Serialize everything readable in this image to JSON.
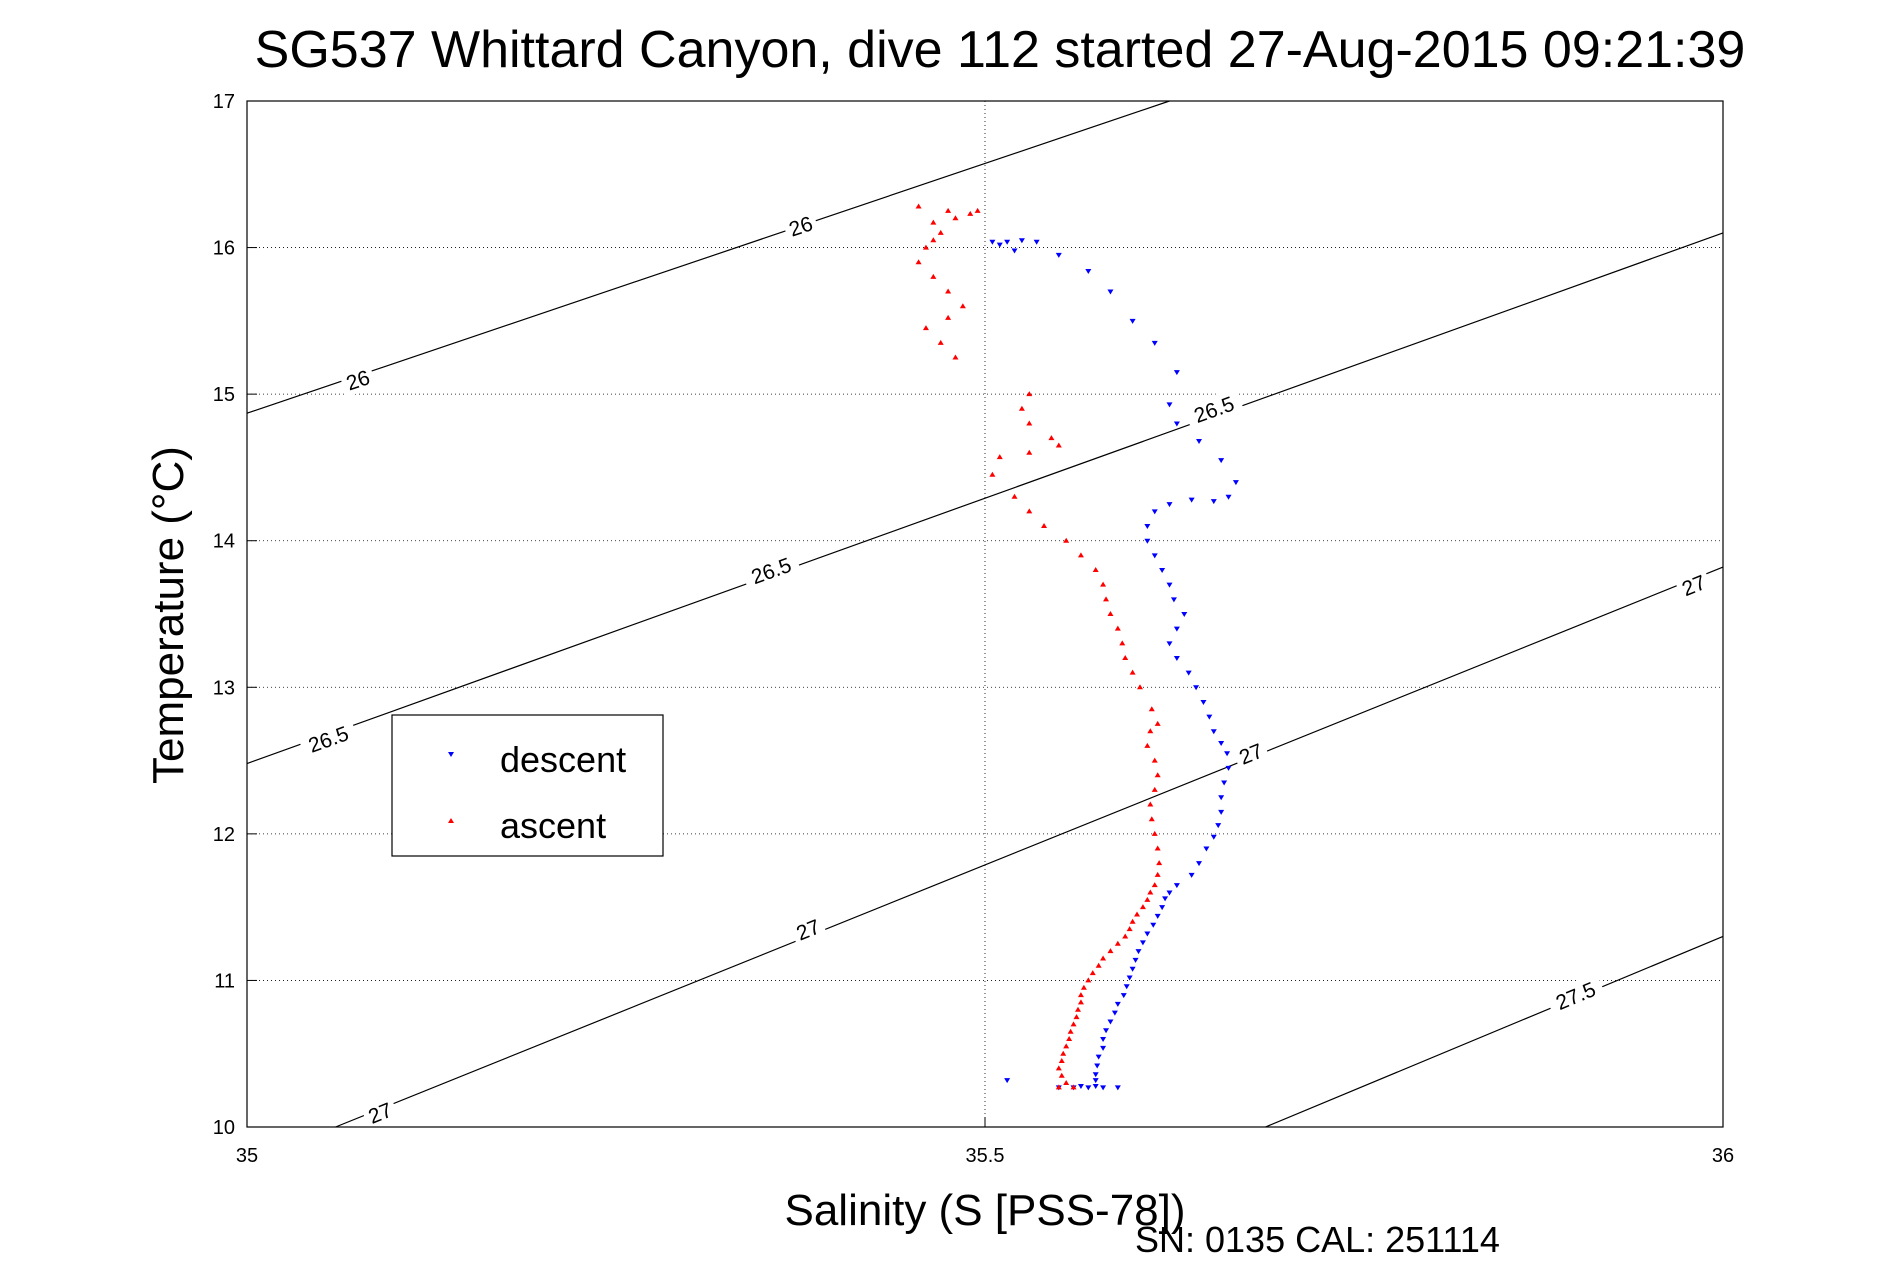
{
  "chart_data": {
    "type": "scatter",
    "title": "SG537 Whittard Canyon, dive 112 started 27-Aug-2015 09:21:39",
    "xlabel": "Salinity (S [PSS-78])",
    "ylabel": "Temperature (°C)",
    "xlim": [
      35,
      36
    ],
    "ylim": [
      10,
      17
    ],
    "grid": true,
    "x_ticks": [
      "35",
      "35.5",
      "36"
    ],
    "y_ticks": [
      "10",
      "11",
      "12",
      "13",
      "14",
      "15",
      "16",
      "17"
    ],
    "legend_position": "left-middle",
    "legend": [
      "descent",
      "ascent"
    ],
    "footer": "SN: 0135  CAL: 251114",
    "density_contours": [
      {
        "level": "26",
        "points": [
          [
            35.0,
            14.87
          ],
          [
            35.625,
            17.0
          ]
        ],
        "labels": [
          {
            "text": "26",
            "x": 35.075,
            "y": 15.1
          },
          {
            "text": "26",
            "x": 35.375,
            "y": 16.15
          }
        ]
      },
      {
        "level": "26.5",
        "points": [
          [
            35.0,
            12.48
          ],
          [
            36.0,
            16.1
          ]
        ],
        "labels": [
          {
            "text": "26.5",
            "x": 35.055,
            "y": 12.65
          },
          {
            "text": "26.5",
            "x": 35.355,
            "y": 13.8
          },
          {
            "text": "26.5",
            "x": 35.655,
            "y": 14.9
          }
        ]
      },
      {
        "level": "27",
        "points": [
          [
            35.06,
            10.0
          ],
          [
            36.0,
            13.82
          ]
        ],
        "labels": [
          {
            "text": "27",
            "x": 35.09,
            "y": 10.1
          },
          {
            "text": "27",
            "x": 35.38,
            "y": 11.35
          },
          {
            "text": "27",
            "x": 35.68,
            "y": 12.55
          },
          {
            "text": "27",
            "x": 35.98,
            "y": 13.7
          }
        ]
      },
      {
        "level": "27.5",
        "points": [
          [
            35.69,
            10.0
          ],
          [
            36.0,
            11.3
          ]
        ],
        "labels": [
          {
            "text": "27.5",
            "x": 35.9,
            "y": 10.9
          }
        ]
      }
    ],
    "series": [
      {
        "name": "descent",
        "color": "#0000ff",
        "marker": "triangle-down",
        "points": [
          [
            35.56,
            10.27
          ],
          [
            35.57,
            10.27
          ],
          [
            35.58,
            10.27
          ],
          [
            35.575,
            10.28
          ],
          [
            35.59,
            10.27
          ],
          [
            35.575,
            10.32
          ],
          [
            35.565,
            10.28
          ],
          [
            35.55,
            10.27
          ],
          [
            35.515,
            10.32
          ],
          [
            35.575,
            10.36
          ],
          [
            35.576,
            10.42
          ],
          [
            35.577,
            10.48
          ],
          [
            35.58,
            10.54
          ],
          [
            35.58,
            10.6
          ],
          [
            35.582,
            10.66
          ],
          [
            35.585,
            10.72
          ],
          [
            35.588,
            10.78
          ],
          [
            35.59,
            10.84
          ],
          [
            35.594,
            10.9
          ],
          [
            35.596,
            10.96
          ],
          [
            35.598,
            11.02
          ],
          [
            35.6,
            11.08
          ],
          [
            35.602,
            11.14
          ],
          [
            35.604,
            11.2
          ],
          [
            35.607,
            11.26
          ],
          [
            35.61,
            11.32
          ],
          [
            35.614,
            11.38
          ],
          [
            35.617,
            11.44
          ],
          [
            35.62,
            11.5
          ],
          [
            35.622,
            11.56
          ],
          [
            35.625,
            11.6
          ],
          [
            35.63,
            11.65
          ],
          [
            35.64,
            11.72
          ],
          [
            35.645,
            11.8
          ],
          [
            35.65,
            11.9
          ],
          [
            35.655,
            11.98
          ],
          [
            35.658,
            12.06
          ],
          [
            35.66,
            12.15
          ],
          [
            35.66,
            12.25
          ],
          [
            35.662,
            12.35
          ],
          [
            35.665,
            12.45
          ],
          [
            35.664,
            12.55
          ],
          [
            35.66,
            12.62
          ],
          [
            35.655,
            12.7
          ],
          [
            35.652,
            12.8
          ],
          [
            35.648,
            12.9
          ],
          [
            35.643,
            13.0
          ],
          [
            35.638,
            13.1
          ],
          [
            35.63,
            13.2
          ],
          [
            35.625,
            13.3
          ],
          [
            35.63,
            13.4
          ],
          [
            35.635,
            13.5
          ],
          [
            35.628,
            13.6
          ],
          [
            35.625,
            13.7
          ],
          [
            35.62,
            13.8
          ],
          [
            35.615,
            13.9
          ],
          [
            35.61,
            14.0
          ],
          [
            35.61,
            14.1
          ],
          [
            35.615,
            14.2
          ],
          [
            35.625,
            14.25
          ],
          [
            35.64,
            14.28
          ],
          [
            35.655,
            14.27
          ],
          [
            35.665,
            14.3
          ],
          [
            35.67,
            14.4
          ],
          [
            35.66,
            14.55
          ],
          [
            35.645,
            14.68
          ],
          [
            35.63,
            14.8
          ],
          [
            35.625,
            14.93
          ],
          [
            35.63,
            15.15
          ],
          [
            35.615,
            15.35
          ],
          [
            35.6,
            15.5
          ],
          [
            35.585,
            15.7
          ],
          [
            35.57,
            15.84
          ],
          [
            35.55,
            15.95
          ],
          [
            35.535,
            16.04
          ],
          [
            35.525,
            16.05
          ],
          [
            35.515,
            16.04
          ],
          [
            35.505,
            16.04
          ],
          [
            35.51,
            16.02
          ],
          [
            35.52,
            15.98
          ]
        ]
      },
      {
        "name": "ascent",
        "color": "#ff0000",
        "marker": "triangle-up",
        "points": [
          [
            35.55,
            10.27
          ],
          [
            35.56,
            10.27
          ],
          [
            35.555,
            10.3
          ],
          [
            35.552,
            10.35
          ],
          [
            35.55,
            10.4
          ],
          [
            35.552,
            10.45
          ],
          [
            35.553,
            10.5
          ],
          [
            35.555,
            10.55
          ],
          [
            35.557,
            10.6
          ],
          [
            35.558,
            10.65
          ],
          [
            35.56,
            10.7
          ],
          [
            35.562,
            10.75
          ],
          [
            35.563,
            10.8
          ],
          [
            35.565,
            10.85
          ],
          [
            35.565,
            10.9
          ],
          [
            35.567,
            10.95
          ],
          [
            35.57,
            11.0
          ],
          [
            35.573,
            11.05
          ],
          [
            35.577,
            11.1
          ],
          [
            35.58,
            11.15
          ],
          [
            35.585,
            11.2
          ],
          [
            35.59,
            11.25
          ],
          [
            35.595,
            11.3
          ],
          [
            35.598,
            11.35
          ],
          [
            35.6,
            11.4
          ],
          [
            35.603,
            11.45
          ],
          [
            35.607,
            11.5
          ],
          [
            35.61,
            11.55
          ],
          [
            35.612,
            11.6
          ],
          [
            35.615,
            11.65
          ],
          [
            35.617,
            11.72
          ],
          [
            35.618,
            11.8
          ],
          [
            35.617,
            11.9
          ],
          [
            35.615,
            12.0
          ],
          [
            35.613,
            12.1
          ],
          [
            35.612,
            12.2
          ],
          [
            35.615,
            12.3
          ],
          [
            35.617,
            12.4
          ],
          [
            35.615,
            12.5
          ],
          [
            35.61,
            12.6
          ],
          [
            35.612,
            12.7
          ],
          [
            35.617,
            12.75
          ],
          [
            35.613,
            12.85
          ],
          [
            35.605,
            13.0
          ],
          [
            35.6,
            13.1
          ],
          [
            35.595,
            13.2
          ],
          [
            35.593,
            13.3
          ],
          [
            35.59,
            13.4
          ],
          [
            35.585,
            13.5
          ],
          [
            35.582,
            13.6
          ],
          [
            35.58,
            13.7
          ],
          [
            35.575,
            13.8
          ],
          [
            35.565,
            13.9
          ],
          [
            35.555,
            14.0
          ],
          [
            35.54,
            14.1
          ],
          [
            35.53,
            14.2
          ],
          [
            35.52,
            14.3
          ],
          [
            35.505,
            14.45
          ],
          [
            35.51,
            14.57
          ],
          [
            35.53,
            14.6
          ],
          [
            35.55,
            14.65
          ],
          [
            35.545,
            14.7
          ],
          [
            35.53,
            14.8
          ],
          [
            35.525,
            14.9
          ],
          [
            35.53,
            15.0
          ],
          [
            35.48,
            15.25
          ],
          [
            35.47,
            15.35
          ],
          [
            35.46,
            15.45
          ],
          [
            35.475,
            15.52
          ],
          [
            35.485,
            15.6
          ],
          [
            35.475,
            15.7
          ],
          [
            35.465,
            15.8
          ],
          [
            35.455,
            15.9
          ],
          [
            35.46,
            16.0
          ],
          [
            35.465,
            16.05
          ],
          [
            35.47,
            16.1
          ],
          [
            35.465,
            16.17
          ],
          [
            35.455,
            16.28
          ],
          [
            35.475,
            16.25
          ],
          [
            35.48,
            16.2
          ],
          [
            35.49,
            16.23
          ],
          [
            35.495,
            16.25
          ]
        ]
      }
    ]
  }
}
